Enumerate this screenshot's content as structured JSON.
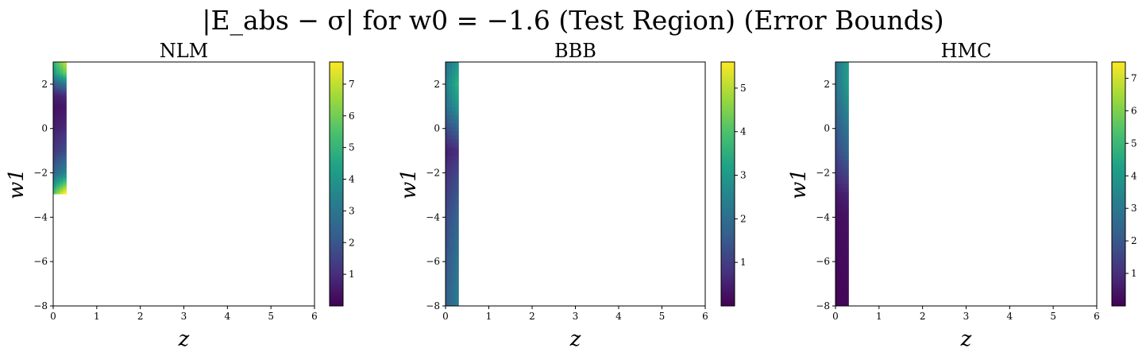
{
  "figure": {
    "suptitle": "|E_abs − σ| for w0 = −1.6 (Test Region) (Error Bounds)"
  },
  "chart_data": [
    {
      "type": "heatmap",
      "title": "NLM",
      "xlabel": "z",
      "ylabel": "w1",
      "xlim": [
        0,
        6
      ],
      "ylim": [
        -8,
        3
      ],
      "xticks": [
        0,
        1,
        2,
        3,
        4,
        5,
        6
      ],
      "yticks": [
        -8,
        -6,
        -4,
        -2,
        0,
        2
      ],
      "colormap": "viridis",
      "colorbar": {
        "min": 0,
        "max": 7.7,
        "ticks": [
          1,
          2,
          3,
          4,
          5,
          6,
          7
        ]
      },
      "data_column_x_range": [
        0,
        0.3
      ],
      "data_y_range": [
        -2.95,
        3
      ],
      "profile": [
        {
          "w1": 3.0,
          "value": 6.0
        },
        {
          "w1": 2.5,
          "value": 5.0
        },
        {
          "w1": 2.0,
          "value": 2.5
        },
        {
          "w1": 1.5,
          "value": 0.8
        },
        {
          "w1": 1.0,
          "value": 0.4
        },
        {
          "w1": 0.0,
          "value": 0.8
        },
        {
          "w1": -1.0,
          "value": 1.5
        },
        {
          "w1": -2.0,
          "value": 3.0
        },
        {
          "w1": -2.5,
          "value": 5.0
        },
        {
          "w1": -2.95,
          "value": 7.0
        }
      ]
    },
    {
      "type": "heatmap",
      "title": "BBB",
      "xlabel": "z",
      "ylabel": "w1",
      "xlim": [
        0,
        6
      ],
      "ylim": [
        -8,
        3
      ],
      "xticks": [
        0,
        1,
        2,
        3,
        4,
        5,
        6
      ],
      "yticks": [
        -8,
        -6,
        -4,
        -2,
        0,
        2
      ],
      "colormap": "viridis",
      "colorbar": {
        "min": 0,
        "max": 5.6,
        "ticks": [
          1,
          2,
          3,
          4,
          5
        ]
      },
      "data_column_x_range": [
        0,
        0.3
      ],
      "data_y_range": [
        -8,
        3
      ],
      "profile": [
        {
          "w1": 3.0,
          "value": 2.5
        },
        {
          "w1": 2.0,
          "value": 3.0
        },
        {
          "w1": 1.0,
          "value": 2.5
        },
        {
          "w1": 0.0,
          "value": 1.5
        },
        {
          "w1": -1.0,
          "value": 0.6
        },
        {
          "w1": -2.0,
          "value": 1.0
        },
        {
          "w1": -4.0,
          "value": 1.5
        },
        {
          "w1": -6.0,
          "value": 1.8
        },
        {
          "w1": -8.0,
          "value": 2.0
        }
      ]
    },
    {
      "type": "heatmap",
      "title": "HMC",
      "xlabel": "z",
      "ylabel": "w1",
      "xlim": [
        0,
        6
      ],
      "ylim": [
        -8,
        3
      ],
      "xticks": [
        0,
        1,
        2,
        3,
        4,
        5,
        6
      ],
      "yticks": [
        -8,
        -6,
        -4,
        -2,
        0,
        2
      ],
      "colormap": "viridis",
      "colorbar": {
        "min": 0,
        "max": 7.5,
        "ticks": [
          1,
          2,
          3,
          4,
          5,
          6,
          7
        ]
      },
      "data_column_x_range": [
        0,
        0.3
      ],
      "data_y_range": [
        -8,
        3
      ],
      "profile": [
        {
          "w1": 3.0,
          "value": 3.5
        },
        {
          "w1": 2.0,
          "value": 3.5
        },
        {
          "w1": 1.0,
          "value": 3.0
        },
        {
          "w1": 0.0,
          "value": 2.5
        },
        {
          "w1": -1.0,
          "value": 2.0
        },
        {
          "w1": -2.0,
          "value": 1.3
        },
        {
          "w1": -3.0,
          "value": 0.6
        },
        {
          "w1": -4.0,
          "value": 0.3
        },
        {
          "w1": -6.0,
          "value": 0.2
        },
        {
          "w1": -8.0,
          "value": 0.1
        }
      ]
    }
  ]
}
